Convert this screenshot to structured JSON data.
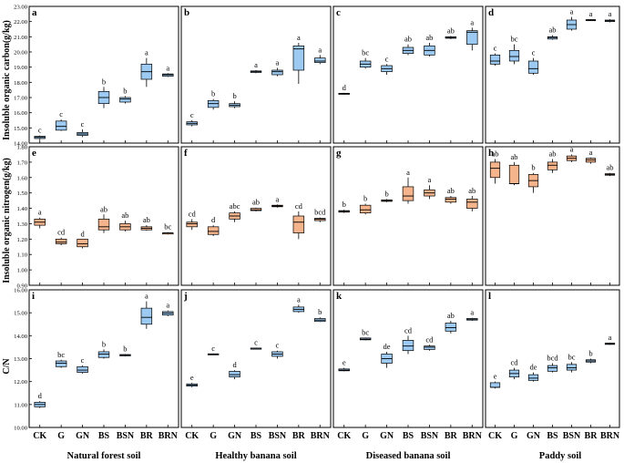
{
  "colors": {
    "blue": "#9ccaf2",
    "orange": "#f5b48c",
    "frame": "#000000"
  },
  "x_categories": [
    "CK",
    "G",
    "GN",
    "BS",
    "BSN",
    "BR",
    "BRN"
  ],
  "column_titles": [
    "Natural forest soil",
    "Healthy banana soil",
    "Diseased banana soil",
    "Paddy soil"
  ],
  "row_ylabels": [
    "Insoluble organic carbon(g/kg)",
    "Insoluble organic nitrogen(g/kg)",
    "C/N"
  ],
  "chart_data": [
    {
      "type": "box",
      "panel": "a",
      "row": 0,
      "col": 0,
      "color": "blue",
      "ylim": [
        14.0,
        23.0
      ],
      "yticks": [
        "14.00",
        "15.00",
        "16.00",
        "17.00",
        "18.00",
        "19.00",
        "20.00",
        "21.00",
        "22.00",
        "23.00"
      ],
      "boxes": [
        {
          "category": "CK",
          "min": 14.2,
          "q1": 14.3,
          "median": 14.38,
          "q3": 14.45,
          "max": 14.5,
          "letter": "c"
        },
        {
          "category": "G",
          "min": 14.8,
          "q1": 14.85,
          "median": 15.1,
          "q3": 15.45,
          "max": 15.55,
          "letter": "c"
        },
        {
          "category": "GN",
          "min": 14.4,
          "q1": 14.5,
          "median": 14.6,
          "q3": 14.7,
          "max": 14.9,
          "letter": "c"
        },
        {
          "category": "BS",
          "min": 16.3,
          "q1": 16.6,
          "median": 17.0,
          "q3": 17.4,
          "max": 17.7,
          "letter": "b"
        },
        {
          "category": "BSN",
          "min": 16.6,
          "q1": 16.7,
          "median": 16.9,
          "q3": 17.0,
          "max": 17.1,
          "letter": "b"
        },
        {
          "category": "BR",
          "min": 17.7,
          "q1": 18.2,
          "median": 18.7,
          "q3": 19.2,
          "max": 19.6,
          "letter": "a"
        },
        {
          "category": "BRN",
          "min": 18.35,
          "q1": 18.4,
          "median": 18.5,
          "q3": 18.55,
          "max": 18.6,
          "letter": "a"
        }
      ]
    },
    {
      "type": "box",
      "panel": "b",
      "row": 0,
      "col": 1,
      "color": "blue",
      "ylim": [
        14.0,
        23.0
      ],
      "yticks": [],
      "boxes": [
        {
          "category": "CK",
          "min": 15.1,
          "q1": 15.2,
          "median": 15.3,
          "q3": 15.4,
          "max": 15.5,
          "letter": "c"
        },
        {
          "category": "G",
          "min": 16.2,
          "q1": 16.35,
          "median": 16.6,
          "q3": 16.8,
          "max": 16.9,
          "letter": "b"
        },
        {
          "category": "GN",
          "min": 16.3,
          "q1": 16.4,
          "median": 16.5,
          "q3": 16.6,
          "max": 16.75,
          "letter": "b"
        },
        {
          "category": "BS",
          "min": 18.6,
          "q1": 18.65,
          "median": 18.7,
          "q3": 18.75,
          "max": 18.8,
          "letter": "a"
        },
        {
          "category": "BSN",
          "min": 18.4,
          "q1": 18.5,
          "median": 18.7,
          "q3": 18.8,
          "max": 18.95,
          "letter": "a"
        },
        {
          "category": "BR",
          "min": 17.9,
          "q1": 18.8,
          "median": 20.2,
          "q3": 20.4,
          "max": 20.6,
          "letter": "a"
        },
        {
          "category": "BRN",
          "min": 19.2,
          "q1": 19.3,
          "median": 19.4,
          "q3": 19.6,
          "max": 19.8,
          "letter": "a"
        }
      ]
    },
    {
      "type": "box",
      "panel": "c",
      "row": 0,
      "col": 2,
      "color": "blue",
      "ylim": [
        14.0,
        23.0
      ],
      "yticks": [],
      "boxes": [
        {
          "category": "CK",
          "min": 17.2,
          "q1": 17.22,
          "median": 17.25,
          "q3": 17.28,
          "max": 17.3,
          "letter": "d"
        },
        {
          "category": "G",
          "min": 18.9,
          "q1": 19.0,
          "median": 19.2,
          "q3": 19.4,
          "max": 19.6,
          "letter": "bc"
        },
        {
          "category": "GN",
          "min": 18.5,
          "q1": 18.7,
          "median": 18.9,
          "q3": 19.1,
          "max": 19.2,
          "letter": "c"
        },
        {
          "category": "BS",
          "min": 19.8,
          "q1": 19.9,
          "median": 20.1,
          "q3": 20.3,
          "max": 20.5,
          "letter": "ab"
        },
        {
          "category": "BSN",
          "min": 19.7,
          "q1": 19.8,
          "median": 20.1,
          "q3": 20.4,
          "max": 20.6,
          "letter": "ab"
        },
        {
          "category": "BR",
          "min": 20.85,
          "q1": 20.9,
          "median": 20.95,
          "q3": 21.0,
          "max": 21.05,
          "letter": "ab"
        },
        {
          "category": "BRN",
          "min": 20.1,
          "q1": 20.5,
          "median": 21.3,
          "q3": 21.4,
          "max": 21.6,
          "letter": "a"
        }
      ]
    },
    {
      "type": "box",
      "panel": "d",
      "row": 0,
      "col": 3,
      "color": "blue",
      "ylim": [
        14.0,
        23.0
      ],
      "yticks": [],
      "boxes": [
        {
          "category": "CK",
          "min": 19.1,
          "q1": 19.2,
          "median": 19.4,
          "q3": 19.8,
          "max": 19.9,
          "letter": "c"
        },
        {
          "category": "G",
          "min": 19.2,
          "q1": 19.4,
          "median": 19.7,
          "q3": 20.1,
          "max": 20.5,
          "letter": "bc"
        },
        {
          "category": "GN",
          "min": 18.5,
          "q1": 18.6,
          "median": 18.9,
          "q3": 19.4,
          "max": 19.6,
          "letter": "c"
        },
        {
          "category": "BS",
          "min": 20.8,
          "q1": 20.85,
          "median": 20.95,
          "q3": 21.0,
          "max": 21.1,
          "letter": "ab"
        },
        {
          "category": "BSN",
          "min": 21.4,
          "q1": 21.5,
          "median": 21.8,
          "q3": 22.1,
          "max": 22.3,
          "letter": "a"
        },
        {
          "category": "BR",
          "min": 22.05,
          "q1": 22.08,
          "median": 22.1,
          "q3": 22.13,
          "max": 22.15,
          "letter": "a"
        },
        {
          "category": "BRN",
          "min": 21.95,
          "q1": 22.0,
          "median": 22.05,
          "q3": 22.1,
          "max": 22.15,
          "letter": "a"
        }
      ]
    },
    {
      "type": "box",
      "panel": "e",
      "row": 1,
      "col": 0,
      "color": "orange",
      "ylim": [
        0.9,
        1.8
      ],
      "yticks": [
        "0.90",
        "1.00",
        "1.10",
        "1.20",
        "1.30",
        "1.40",
        "1.50",
        "1.60",
        "1.70",
        "1.80"
      ],
      "boxes": [
        {
          "category": "CK",
          "min": 1.27,
          "q1": 1.29,
          "median": 1.31,
          "q3": 1.33,
          "max": 1.34,
          "letter": "a"
        },
        {
          "category": "G",
          "min": 1.16,
          "q1": 1.17,
          "median": 1.18,
          "q3": 1.2,
          "max": 1.21,
          "letter": "cd"
        },
        {
          "category": "GN",
          "min": 1.14,
          "q1": 1.15,
          "median": 1.17,
          "q3": 1.2,
          "max": 1.2,
          "letter": "d"
        },
        {
          "category": "BS",
          "min": 1.24,
          "q1": 1.26,
          "median": 1.28,
          "q3": 1.33,
          "max": 1.36,
          "letter": "ab"
        },
        {
          "category": "BSN",
          "min": 1.25,
          "q1": 1.26,
          "median": 1.28,
          "q3": 1.3,
          "max": 1.32,
          "letter": "ab"
        },
        {
          "category": "BR",
          "min": 1.255,
          "q1": 1.26,
          "median": 1.27,
          "q3": 1.28,
          "max": 1.29,
          "letter": "ab"
        },
        {
          "category": "BRN",
          "min": 1.23,
          "q1": 1.235,
          "median": 1.24,
          "q3": 1.24,
          "max": 1.245,
          "letter": "bc"
        }
      ]
    },
    {
      "type": "box",
      "panel": "f",
      "row": 1,
      "col": 1,
      "color": "orange",
      "ylim": [
        0.9,
        1.8
      ],
      "yticks": [],
      "boxes": [
        {
          "category": "CK",
          "min": 1.26,
          "q1": 1.28,
          "median": 1.3,
          "q3": 1.31,
          "max": 1.33,
          "letter": "cd"
        },
        {
          "category": "G",
          "min": 1.22,
          "q1": 1.23,
          "median": 1.25,
          "q3": 1.28,
          "max": 1.29,
          "letter": "d"
        },
        {
          "category": "GN",
          "min": 1.31,
          "q1": 1.33,
          "median": 1.35,
          "q3": 1.37,
          "max": 1.38,
          "letter": "abc"
        },
        {
          "category": "BS",
          "min": 1.38,
          "q1": 1.385,
          "median": 1.39,
          "q3": 1.4,
          "max": 1.405,
          "letter": "ab"
        },
        {
          "category": "BSN",
          "min": 1.405,
          "q1": 1.41,
          "median": 1.415,
          "q3": 1.42,
          "max": 1.425,
          "letter": "a"
        },
        {
          "category": "BR",
          "min": 1.2,
          "q1": 1.24,
          "median": 1.31,
          "q3": 1.35,
          "max": 1.38,
          "letter": "cd"
        },
        {
          "category": "BRN",
          "min": 1.31,
          "q1": 1.32,
          "median": 1.33,
          "q3": 1.335,
          "max": 1.34,
          "letter": "bcd"
        }
      ]
    },
    {
      "type": "box",
      "panel": "g",
      "row": 1,
      "col": 2,
      "color": "orange",
      "ylim": [
        0.9,
        1.8
      ],
      "yticks": [],
      "boxes": [
        {
          "category": "CK",
          "min": 1.37,
          "q1": 1.375,
          "median": 1.38,
          "q3": 1.385,
          "max": 1.39,
          "letter": "b"
        },
        {
          "category": "G",
          "min": 1.36,
          "q1": 1.37,
          "median": 1.39,
          "q3": 1.42,
          "max": 1.43,
          "letter": "b"
        },
        {
          "category": "GN",
          "min": 1.44,
          "q1": 1.445,
          "median": 1.45,
          "q3": 1.455,
          "max": 1.46,
          "letter": "b"
        },
        {
          "category": "BS",
          "min": 1.43,
          "q1": 1.45,
          "median": 1.48,
          "q3": 1.54,
          "max": 1.6,
          "letter": "a"
        },
        {
          "category": "BSN",
          "min": 1.46,
          "q1": 1.48,
          "median": 1.5,
          "q3": 1.52,
          "max": 1.55,
          "letter": "a"
        },
        {
          "category": "BR",
          "min": 1.43,
          "q1": 1.44,
          "median": 1.46,
          "q3": 1.47,
          "max": 1.48,
          "letter": "ab"
        },
        {
          "category": "BRN",
          "min": 1.38,
          "q1": 1.4,
          "median": 1.44,
          "q3": 1.46,
          "max": 1.48,
          "letter": "ab"
        }
      ]
    },
    {
      "type": "box",
      "panel": "h",
      "row": 1,
      "col": 3,
      "color": "orange",
      "ylim": [
        0.9,
        1.8
      ],
      "yticks": [],
      "boxes": [
        {
          "category": "CK",
          "min": 1.56,
          "q1": 1.6,
          "median": 1.66,
          "q3": 1.7,
          "max": 1.72,
          "letter": "ab"
        },
        {
          "category": "G",
          "min": 1.55,
          "q1": 1.56,
          "median": 1.56,
          "q3": 1.68,
          "max": 1.7,
          "letter": "ab"
        },
        {
          "category": "GN",
          "min": 1.5,
          "q1": 1.54,
          "median": 1.58,
          "q3": 1.62,
          "max": 1.63,
          "letter": "b"
        },
        {
          "category": "BS",
          "min": 1.63,
          "q1": 1.65,
          "median": 1.68,
          "q3": 1.7,
          "max": 1.72,
          "letter": "ab"
        },
        {
          "category": "BSN",
          "min": 1.7,
          "q1": 1.71,
          "median": 1.725,
          "q3": 1.74,
          "max": 1.75,
          "letter": "a"
        },
        {
          "category": "BR",
          "min": 1.69,
          "q1": 1.7,
          "median": 1.715,
          "q3": 1.725,
          "max": 1.73,
          "letter": "a"
        },
        {
          "category": "BRN",
          "min": 1.61,
          "q1": 1.615,
          "median": 1.62,
          "q3": 1.625,
          "max": 1.63,
          "letter": "ab"
        }
      ]
    },
    {
      "type": "box",
      "panel": "i",
      "row": 2,
      "col": 0,
      "color": "blue",
      "ylim": [
        10.0,
        16.0
      ],
      "yticks": [
        "10.00",
        "11.00",
        "12.00",
        "13.00",
        "14.00",
        "15.00",
        "16.00"
      ],
      "boxes": [
        {
          "category": "CK",
          "min": 10.85,
          "q1": 10.9,
          "median": 11.0,
          "q3": 11.1,
          "max": 11.15,
          "letter": "d"
        },
        {
          "category": "G",
          "min": 12.6,
          "q1": 12.65,
          "median": 12.8,
          "q3": 12.9,
          "max": 12.95,
          "letter": "bc"
        },
        {
          "category": "GN",
          "min": 12.35,
          "q1": 12.4,
          "median": 12.5,
          "q3": 12.65,
          "max": 12.7,
          "letter": "c"
        },
        {
          "category": "BS",
          "min": 13.0,
          "q1": 13.05,
          "median": 13.2,
          "q3": 13.3,
          "max": 13.4,
          "letter": "b"
        },
        {
          "category": "BSN",
          "min": 13.1,
          "q1": 13.12,
          "median": 13.15,
          "q3": 13.18,
          "max": 13.2,
          "letter": "b"
        },
        {
          "category": "BR",
          "min": 14.3,
          "q1": 14.5,
          "median": 14.8,
          "q3": 15.2,
          "max": 15.5,
          "letter": "a"
        },
        {
          "category": "BRN",
          "min": 14.85,
          "q1": 14.9,
          "median": 14.98,
          "q3": 15.05,
          "max": 15.1,
          "letter": "a"
        }
      ]
    },
    {
      "type": "box",
      "panel": "j",
      "row": 2,
      "col": 1,
      "color": "blue",
      "ylim": [
        10.0,
        16.0
      ],
      "yticks": [],
      "boxes": [
        {
          "category": "CK",
          "min": 11.75,
          "q1": 11.8,
          "median": 11.85,
          "q3": 11.9,
          "max": 11.95,
          "letter": "e"
        },
        {
          "category": "G",
          "min": 13.18,
          "q1": 13.19,
          "median": 13.2,
          "q3": 13.21,
          "max": 13.22,
          "letter": "c"
        },
        {
          "category": "GN",
          "min": 12.1,
          "q1": 12.2,
          "median": 12.3,
          "q3": 12.45,
          "max": 12.5,
          "letter": "d"
        },
        {
          "category": "BS",
          "min": 13.43,
          "q1": 13.44,
          "median": 13.45,
          "q3": 13.46,
          "max": 13.47,
          "letter": "c"
        },
        {
          "category": "BSN",
          "min": 13.0,
          "q1": 13.1,
          "median": 13.2,
          "q3": 13.3,
          "max": 13.35,
          "letter": "c"
        },
        {
          "category": "BR",
          "min": 15.0,
          "q1": 15.05,
          "median": 15.15,
          "q3": 15.25,
          "max": 15.35,
          "letter": "a"
        },
        {
          "category": "BRN",
          "min": 14.6,
          "q1": 14.62,
          "median": 14.68,
          "q3": 14.75,
          "max": 14.8,
          "letter": "b"
        }
      ]
    },
    {
      "type": "box",
      "panel": "k",
      "row": 2,
      "col": 2,
      "color": "blue",
      "ylim": [
        10.0,
        16.0
      ],
      "yticks": [],
      "boxes": [
        {
          "category": "CK",
          "min": 12.45,
          "q1": 12.47,
          "median": 12.5,
          "q3": 12.55,
          "max": 12.6,
          "letter": "e"
        },
        {
          "category": "G",
          "min": 13.8,
          "q1": 13.82,
          "median": 13.85,
          "q3": 13.9,
          "max": 13.92,
          "letter": "bc"
        },
        {
          "category": "GN",
          "min": 12.6,
          "q1": 12.8,
          "median": 13.0,
          "q3": 13.2,
          "max": 13.3,
          "letter": "de"
        },
        {
          "category": "BS",
          "min": 13.2,
          "q1": 13.35,
          "median": 13.55,
          "q3": 13.8,
          "max": 14.0,
          "letter": "cd"
        },
        {
          "category": "BSN",
          "min": 13.35,
          "q1": 13.4,
          "median": 13.5,
          "q3": 13.55,
          "max": 13.6,
          "letter": "cd"
        },
        {
          "category": "BR",
          "min": 14.1,
          "q1": 14.2,
          "median": 14.35,
          "q3": 14.55,
          "max": 14.65,
          "letter": "ab"
        },
        {
          "category": "BRN",
          "min": 14.65,
          "q1": 14.68,
          "median": 14.72,
          "q3": 14.75,
          "max": 14.78,
          "letter": "a"
        }
      ]
    },
    {
      "type": "box",
      "panel": "l",
      "row": 2,
      "col": 3,
      "color": "blue",
      "ylim": [
        10.0,
        16.0
      ],
      "yticks": [],
      "boxes": [
        {
          "category": "CK",
          "min": 11.7,
          "q1": 11.75,
          "median": 11.75,
          "q3": 11.95,
          "max": 12.0,
          "letter": "e"
        },
        {
          "category": "G",
          "min": 12.1,
          "q1": 12.2,
          "median": 12.35,
          "q3": 12.5,
          "max": 12.6,
          "letter": "cd"
        },
        {
          "category": "GN",
          "min": 12.0,
          "q1": 12.05,
          "median": 12.15,
          "q3": 12.3,
          "max": 12.4,
          "letter": "de"
        },
        {
          "category": "BS",
          "min": 12.4,
          "q1": 12.45,
          "median": 12.6,
          "q3": 12.7,
          "max": 12.8,
          "letter": "bcd"
        },
        {
          "category": "BSN",
          "min": 12.4,
          "q1": 12.5,
          "median": 12.6,
          "q3": 12.75,
          "max": 12.85,
          "letter": "bc"
        },
        {
          "category": "BR",
          "min": 12.8,
          "q1": 12.85,
          "median": 12.9,
          "q3": 12.95,
          "max": 13.0,
          "letter": "b"
        },
        {
          "category": "BRN",
          "min": 13.6,
          "q1": 13.62,
          "median": 13.65,
          "q3": 13.68,
          "max": 13.7,
          "letter": "a"
        }
      ]
    }
  ]
}
